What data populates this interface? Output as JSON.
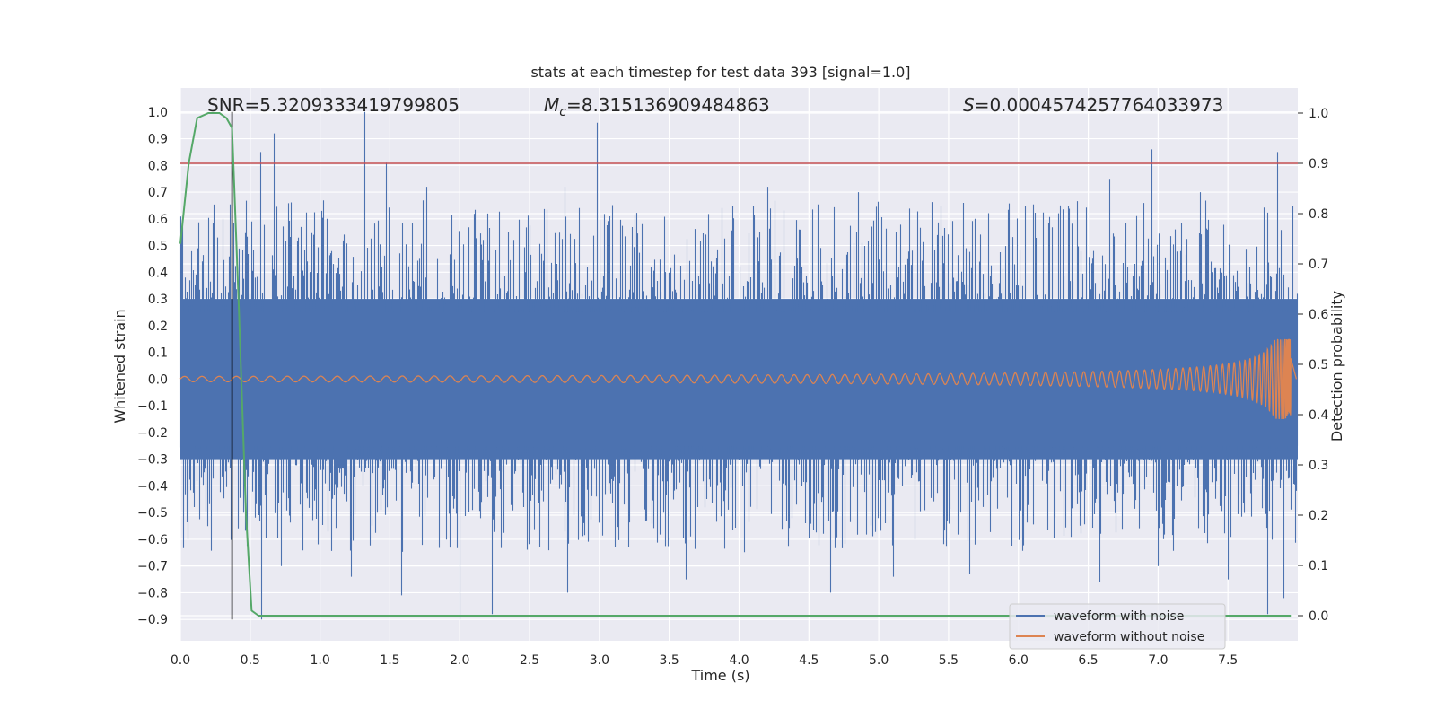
{
  "chart_data": {
    "type": "line",
    "title": "stats at each timestep for test data 393 [signal=1.0]",
    "xlabel": "Time (s)",
    "ylabel_left": "Whitened strain",
    "ylabel_right": "Detection probability",
    "xlim": [
      0.0,
      8.0
    ],
    "ylim_left": [
      -0.98,
      1.09
    ],
    "ylim_right": [
      -0.05,
      1.05
    ],
    "x_ticks": [
      "0.0",
      "0.5",
      "1.0",
      "1.5",
      "2.0",
      "2.5",
      "3.0",
      "3.5",
      "4.0",
      "4.5",
      "5.0",
      "5.5",
      "6.0",
      "6.5",
      "7.0",
      "7.5"
    ],
    "y_ticks_left": [
      "1.0",
      "0.9",
      "0.8",
      "0.7",
      "0.6",
      "0.5",
      "0.4",
      "0.3",
      "0.2",
      "0.1",
      "0.0",
      "−0.1",
      "−0.2",
      "−0.3",
      "−0.4",
      "−0.5",
      "−0.6",
      "−0.7",
      "−0.8",
      "−0.9"
    ],
    "y_ticks_right": [
      "1.0",
      "0.9",
      "0.8",
      "0.7",
      "0.6",
      "0.5",
      "0.4",
      "0.3",
      "0.2",
      "0.1",
      "0.0"
    ],
    "annotations": {
      "snr": "SNR=5.3209333419799805",
      "mc_symbol": "M",
      "mc_sub": "c",
      "mc_value": "=8.315136909484863",
      "s_symbol": "S",
      "s_value": "=0.0004574257764033973"
    },
    "grid": true,
    "legend_position": "lower right",
    "series": [
      {
        "name": "waveform with noise",
        "axis": "left",
        "color": "#4c72b0",
        "band_typical": [
          -0.3,
          0.3
        ],
        "peaks_max": [
          [
            0.03,
            0.38
          ],
          [
            0.2,
            0.55
          ],
          [
            0.3,
            0.6
          ],
          [
            0.48,
            0.45
          ],
          [
            0.57,
            0.85
          ],
          [
            0.67,
            0.92
          ],
          [
            1.05,
            0.6
          ],
          [
            1.32,
            1.0
          ],
          [
            1.47,
            0.81
          ],
          [
            1.76,
            0.72
          ],
          [
            2.2,
            0.62
          ],
          [
            2.75,
            0.72
          ],
          [
            2.98,
            0.96
          ],
          [
            3.3,
            0.58
          ],
          [
            4.2,
            0.72
          ],
          [
            4.85,
            0.7
          ],
          [
            5.6,
            0.66
          ],
          [
            6.3,
            0.65
          ],
          [
            6.65,
            0.75
          ],
          [
            6.95,
            0.86
          ],
          [
            7.3,
            0.7
          ],
          [
            7.85,
            0.85
          ]
        ],
        "peaks_min": [
          [
            0.05,
            -0.6
          ],
          [
            0.45,
            -0.5
          ],
          [
            0.58,
            -0.9
          ],
          [
            0.72,
            -0.7
          ],
          [
            1.22,
            -0.74
          ],
          [
            1.58,
            -0.81
          ],
          [
            2.0,
            -0.9
          ],
          [
            2.23,
            -0.88
          ],
          [
            2.77,
            -0.8
          ],
          [
            3.62,
            -0.75
          ],
          [
            4.65,
            -0.8
          ],
          [
            5.1,
            -0.74
          ],
          [
            5.65,
            -0.73
          ],
          [
            6.58,
            -0.76
          ],
          [
            7.0,
            -0.7
          ],
          [
            7.5,
            -0.75
          ],
          [
            7.78,
            -0.88
          ],
          [
            7.9,
            -0.82
          ]
        ]
      },
      {
        "name": "waveform without noise",
        "axis": "left",
        "color": "#dd8452",
        "x_range": [
          0.0,
          7.95
        ],
        "start_amplitude": 0.01,
        "peak_amplitude": 0.15,
        "peak_time": 7.92
      },
      {
        "name": "detection probability",
        "axis": "right",
        "color": "#55a868",
        "x": [
          0.0,
          0.06,
          0.12,
          0.2,
          0.28,
          0.33,
          0.37,
          0.42,
          0.47,
          0.51,
          0.56,
          7.95
        ],
        "y": [
          0.74,
          0.9,
          0.99,
          1.0,
          1.0,
          0.99,
          0.97,
          0.6,
          0.2,
          0.01,
          0.0,
          0.0
        ]
      }
    ],
    "hlines": [
      {
        "axis": "right",
        "value": 0.9,
        "color": "#c44e52"
      }
    ],
    "vlines": [
      {
        "axis": "left",
        "x": 0.37,
        "ymin": -0.9,
        "ymax": 1.0,
        "color": "#000000"
      }
    ],
    "legend": [
      "waveform with noise",
      "waveform without noise"
    ]
  }
}
